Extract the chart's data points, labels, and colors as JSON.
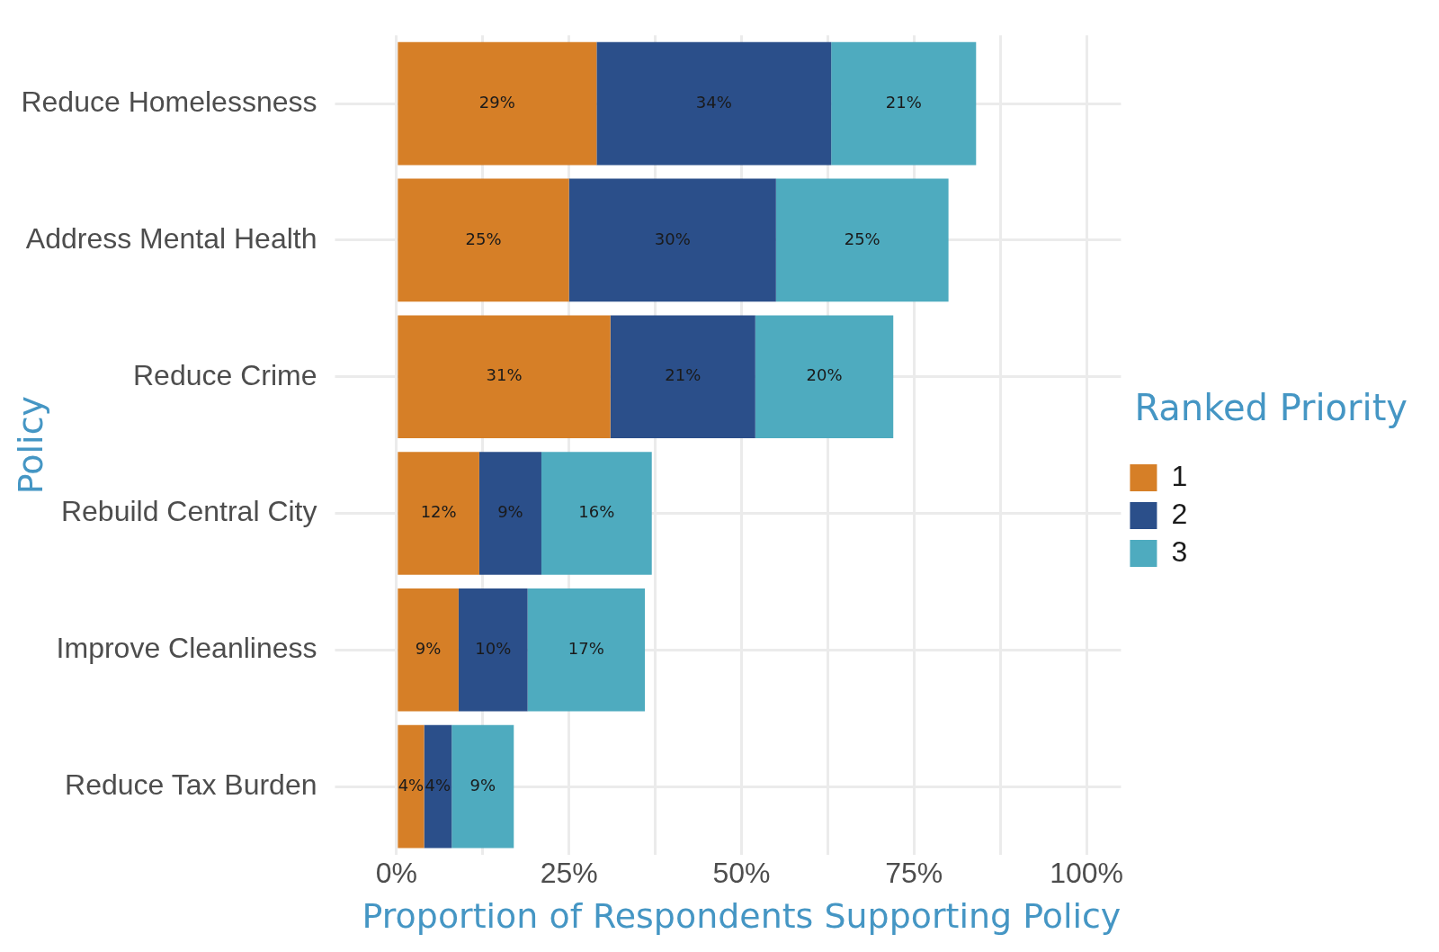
{
  "chart_data": {
    "type": "bar",
    "orientation": "horizontal",
    "stacked": true,
    "xlabel": "Proportion of Respondents Supporting Policy",
    "ylabel": "Policy",
    "legend_title": "Ranked Priority",
    "legend": "right",
    "grid": true,
    "categories": [
      "Reduce Homelessness",
      "Address Mental Health",
      "Reduce Crime",
      "Rebuild Central City",
      "Improve Cleanliness",
      "Reduce Tax Burden"
    ],
    "xlim": [
      -5,
      105
    ],
    "xticks": [
      {
        "value": 0,
        "label": "0%"
      },
      {
        "value": 12.5,
        "label": null
      },
      {
        "value": 25,
        "label": "25%"
      },
      {
        "value": 37.5,
        "label": null
      },
      {
        "value": 50,
        "label": "50%"
      },
      {
        "value": 62.5,
        "label": null
      },
      {
        "value": 75,
        "label": "75%"
      },
      {
        "value": 87.5,
        "label": null
      },
      {
        "value": 100,
        "label": "100%"
      }
    ],
    "series": [
      {
        "name": "1",
        "color": "#d67f27",
        "values": [
          29,
          25,
          31,
          12,
          9,
          4
        ],
        "value_labels": [
          "29%",
          "25%",
          "31%",
          "12%",
          "9%",
          "4%"
        ]
      },
      {
        "name": "2",
        "color": "#2b4f8a",
        "values": [
          34,
          30,
          21,
          9,
          10,
          4
        ],
        "value_labels": [
          "34%",
          "30%",
          "21%",
          "9%",
          "10%",
          "4%"
        ]
      },
      {
        "name": "3",
        "color": "#4eabbf",
        "values": [
          21,
          25,
          20,
          16,
          17,
          9
        ],
        "value_labels": [
          "21%",
          "25%",
          "20%",
          "16%",
          "17%",
          "9%"
        ]
      }
    ]
  }
}
